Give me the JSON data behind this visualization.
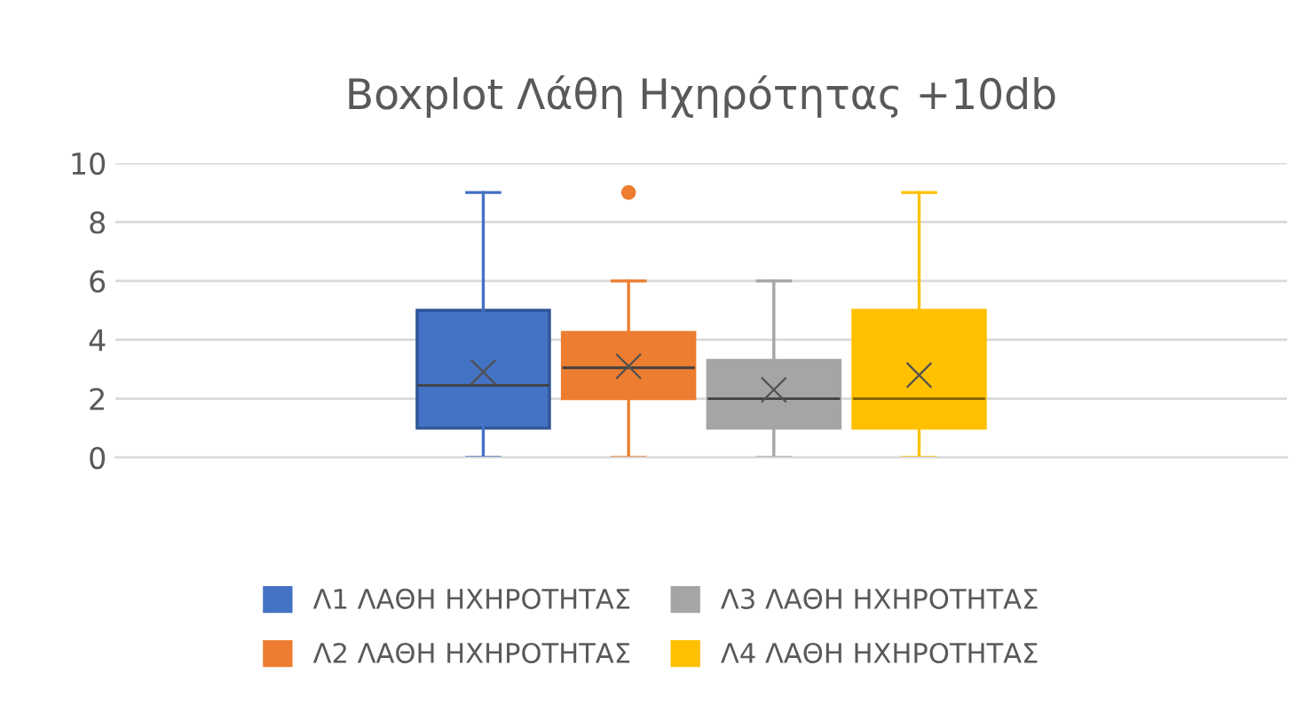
{
  "chart_data": {
    "type": "box",
    "title": "Boxplot Λάθη Ηχηρότητας +10db",
    "categories": [
      null
    ],
    "ylim": [
      0,
      10
    ],
    "yticks": [
      0,
      2,
      4,
      6,
      8,
      10
    ],
    "grid": "y",
    "legend": "bottom",
    "marker": "cross",
    "tick_labels": "y",
    "series": [
      {
        "name": "Λ1 ΛΑΘΗ ΗΧΗΡΟΤΗΤΑΣ",
        "color": "#4472c4",
        "boxes": [
          {
            "low": 0,
            "q1": 1,
            "median": 2.45,
            "q3": 5,
            "high": 9,
            "mean": 2.9
          }
        ]
      },
      {
        "name": "Λ2 ΛΑΘΗ ΗΧΗΡΟΤΗΤΑΣ",
        "color": "#ed7d31",
        "boxes": [
          {
            "low": 0,
            "q1": 2,
            "median": 3.05,
            "q3": 4.25,
            "high": 6,
            "mean": 3.1,
            "outliers": [
              9
            ]
          }
        ]
      },
      {
        "name": "Λ3 ΛΑΘΗ ΗΧΗΡΟΤΗΤΑΣ",
        "color": "#a5a5a5",
        "boxes": [
          {
            "low": 0,
            "q1": 1,
            "median": 2,
            "q3": 3.3,
            "high": 6,
            "mean": 2.3
          }
        ]
      },
      {
        "name": "Λ4 ΛΑΘΗ ΗΧΗΡΟΤΗΤΑΣ",
        "color": "#ffc000",
        "boxes": [
          {
            "low": 0,
            "q1": 1,
            "median": 2,
            "q3": 5,
            "high": 9,
            "mean": 2.8
          }
        ]
      }
    ]
  }
}
